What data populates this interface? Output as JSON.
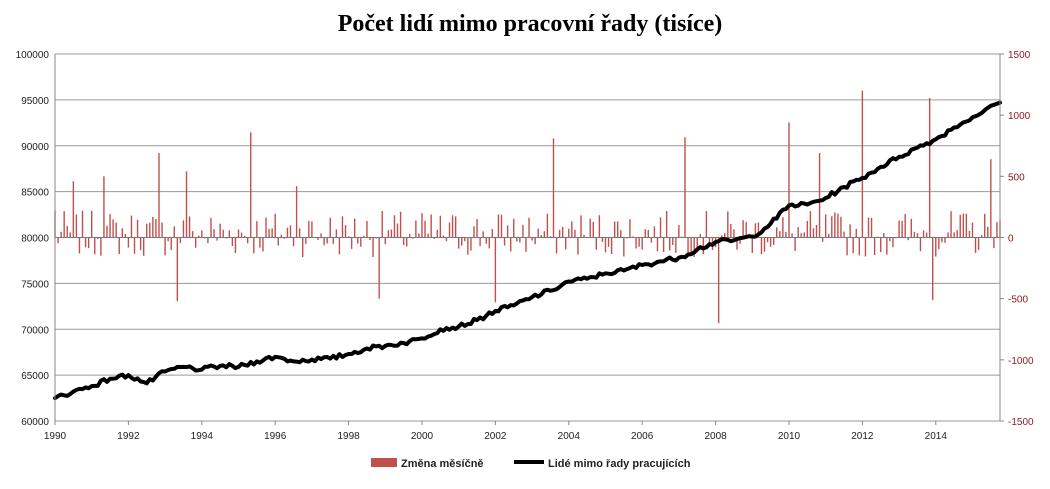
{
  "chart_data": {
    "type": "bar+line",
    "title": "Počet lidí mimo pracovní řady (tisíce)",
    "x_range": [
      1990,
      2015.75
    ],
    "x_ticks": [
      "1990",
      "1992",
      "1994",
      "1996",
      "1998",
      "2000",
      "2002",
      "2004",
      "2006",
      "2008",
      "2010",
      "2012",
      "2014"
    ],
    "y_left": {
      "min": 60000,
      "max": 100000,
      "step": 5000,
      "ticks": [
        "60000",
        "65000",
        "70000",
        "75000",
        "80000",
        "85000",
        "90000",
        "95000",
        "100000"
      ]
    },
    "y_right": {
      "min": -1500,
      "max": 1500,
      "step": 500,
      "ticks": [
        "-1500",
        "-1000",
        "-500",
        "0",
        "500",
        "1000",
        "1500"
      ]
    },
    "grid": "horizontal",
    "legend_position": "bottom",
    "series": [
      {
        "name": "Změna měsíčně",
        "type": "bar",
        "axis": "right",
        "color": "#c0504d",
        "peaks": [
          {
            "x": 1990.0,
            "y": 220
          },
          {
            "x": 1990.5,
            "y": 460
          },
          {
            "x": 1991.3,
            "y": 500
          },
          {
            "x": 1992.8,
            "y": 690
          },
          {
            "x": 1993.3,
            "y": -520
          },
          {
            "x": 1993.6,
            "y": 540
          },
          {
            "x": 1995.3,
            "y": 860
          },
          {
            "x": 1996.6,
            "y": 420
          },
          {
            "x": 1998.8,
            "y": -500
          },
          {
            "x": 2002.0,
            "y": -530
          },
          {
            "x": 2003.6,
            "y": 810
          },
          {
            "x": 2007.2,
            "y": 820
          },
          {
            "x": 2008.1,
            "y": -700
          },
          {
            "x": 2010.0,
            "y": 940
          },
          {
            "x": 2010.8,
            "y": 690
          },
          {
            "x": 2012.0,
            "y": 1200
          },
          {
            "x": 2013.8,
            "y": 1140
          },
          {
            "x": 2013.9,
            "y": -510
          },
          {
            "x": 2015.5,
            "y": 640
          }
        ]
      },
      {
        "name": "Lidé mimo řady pracujících",
        "type": "line",
        "axis": "left",
        "color": "#000000",
        "points": [
          {
            "x": 1990.0,
            "y": 62500
          },
          {
            "x": 1990.5,
            "y": 63200
          },
          {
            "x": 1991.0,
            "y": 63800
          },
          {
            "x": 1991.5,
            "y": 64600
          },
          {
            "x": 1992.0,
            "y": 65000
          },
          {
            "x": 1992.5,
            "y": 64100
          },
          {
            "x": 1993.0,
            "y": 65400
          },
          {
            "x": 1993.5,
            "y": 65900
          },
          {
            "x": 1994.0,
            "y": 65600
          },
          {
            "x": 1994.5,
            "y": 66000
          },
          {
            "x": 1995.0,
            "y": 65900
          },
          {
            "x": 1995.5,
            "y": 66500
          },
          {
            "x": 1996.0,
            "y": 67000
          },
          {
            "x": 1996.5,
            "y": 66500
          },
          {
            "x": 1997.0,
            "y": 66700
          },
          {
            "x": 1997.5,
            "y": 66800
          },
          {
            "x": 1998.0,
            "y": 67300
          },
          {
            "x": 1998.5,
            "y": 67900
          },
          {
            "x": 1999.0,
            "y": 68200
          },
          {
            "x": 1999.5,
            "y": 68500
          },
          {
            "x": 2000.0,
            "y": 69000
          },
          {
            "x": 2000.5,
            "y": 70000
          },
          {
            "x": 2001.0,
            "y": 70300
          },
          {
            "x": 2001.5,
            "y": 71000
          },
          {
            "x": 2002.0,
            "y": 72000
          },
          {
            "x": 2002.5,
            "y": 72600
          },
          {
            "x": 2003.0,
            "y": 73500
          },
          {
            "x": 2003.5,
            "y": 74200
          },
          {
            "x": 2004.0,
            "y": 75200
          },
          {
            "x": 2004.5,
            "y": 75500
          },
          {
            "x": 2005.0,
            "y": 76100
          },
          {
            "x": 2005.5,
            "y": 76400
          },
          {
            "x": 2006.0,
            "y": 77000
          },
          {
            "x": 2006.5,
            "y": 77400
          },
          {
            "x": 2007.0,
            "y": 77800
          },
          {
            "x": 2007.5,
            "y": 78700
          },
          {
            "x": 2008.0,
            "y": 79500
          },
          {
            "x": 2008.5,
            "y": 79700
          },
          {
            "x": 2009.0,
            "y": 80100
          },
          {
            "x": 2009.5,
            "y": 81500
          },
          {
            "x": 2010.0,
            "y": 83500
          },
          {
            "x": 2010.5,
            "y": 83600
          },
          {
            "x": 2011.0,
            "y": 84300
          },
          {
            "x": 2011.5,
            "y": 85500
          },
          {
            "x": 2012.0,
            "y": 86500
          },
          {
            "x": 2012.5,
            "y": 87700
          },
          {
            "x": 2013.0,
            "y": 88800
          },
          {
            "x": 2013.5,
            "y": 89800
          },
          {
            "x": 2014.0,
            "y": 90700
          },
          {
            "x": 2014.5,
            "y": 92000
          },
          {
            "x": 2015.0,
            "y": 93100
          },
          {
            "x": 2015.75,
            "y": 94700
          }
        ]
      }
    ]
  }
}
